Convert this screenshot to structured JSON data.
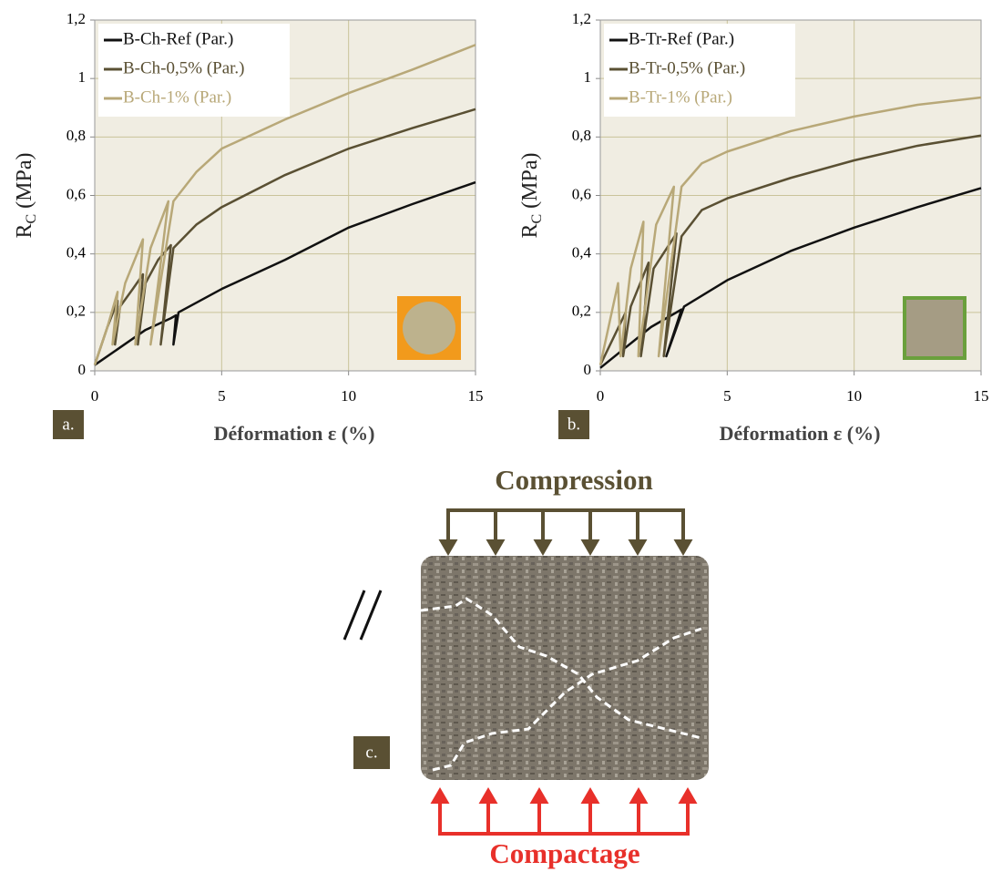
{
  "chart_data": [
    {
      "type": "line",
      "panel_label": "a.",
      "xlabel": "Déformation ε (%)",
      "ylabel": {
        "main": "R",
        "sub": "C",
        "rest": " (MPa)"
      },
      "xlim": [
        0,
        15
      ],
      "xticks": [
        0,
        5,
        10,
        15
      ],
      "ylim": [
        0,
        1.2
      ],
      "yticks": [
        0,
        {
          "value": 0.2,
          "label": "0,2"
        },
        {
          "value": 0.4,
          "label": "0,4"
        },
        {
          "value": 0.6,
          "label": "0,6"
        },
        {
          "value": 0.8,
          "label": "0,8"
        },
        1,
        {
          "value": 1.2,
          "label": "1,2"
        }
      ],
      "grid": true,
      "legend": "upper left",
      "series": [
        {
          "name": "B-Ch-Ref (Par.)",
          "color": "#111111",
          "x": [
            0,
            1,
            2,
            3,
            3.2,
            3.1,
            3.3,
            5,
            7.5,
            10,
            12.5,
            15
          ],
          "values": [
            0.02,
            0.08,
            0.14,
            0.18,
            0.19,
            0.09,
            0.2,
            0.28,
            0.38,
            0.49,
            0.57,
            0.645
          ]
        },
        {
          "name": "B-Ch-0,5% (Par.)",
          "color": "#5a5033",
          "x": [
            0,
            0.5,
            0.9,
            0.8,
            1,
            1.5,
            1.9,
            1.7,
            2,
            2.5,
            3,
            2.6,
            3.1,
            4,
            5,
            7.5,
            10,
            12.5,
            15
          ],
          "values": [
            0.02,
            0.15,
            0.24,
            0.09,
            0.22,
            0.28,
            0.33,
            0.09,
            0.3,
            0.38,
            0.43,
            0.09,
            0.42,
            0.5,
            0.56,
            0.67,
            0.76,
            0.83,
            0.895
          ]
        },
        {
          "name": "B-Ch-1% (Par.)",
          "color": "#b8a878",
          "x": [
            0,
            0.5,
            0.9,
            0.7,
            1.2,
            1.9,
            1.6,
            2.2,
            2.9,
            2.2,
            3.1,
            4,
            5,
            7.5,
            10,
            12.5,
            15
          ],
          "values": [
            0.02,
            0.15,
            0.27,
            0.09,
            0.3,
            0.45,
            0.09,
            0.42,
            0.58,
            0.09,
            0.58,
            0.68,
            0.76,
            0.86,
            0.95,
            1.03,
            1.115
          ]
        }
      ]
    },
    {
      "type": "line",
      "panel_label": "b.",
      "xlabel": "Déformation ε (%)",
      "ylabel": {
        "main": "R",
        "sub": "C",
        "rest": " (MPa)"
      },
      "xlim": [
        0,
        15
      ],
      "xticks": [
        0,
        5,
        10,
        15
      ],
      "ylim": [
        0,
        1.2
      ],
      "yticks": [
        0,
        {
          "value": 0.2,
          "label": "0,2"
        },
        {
          "value": 0.4,
          "label": "0,4"
        },
        {
          "value": 0.6,
          "label": "0,6"
        },
        {
          "value": 0.8,
          "label": "0,8"
        },
        1,
        {
          "value": 1.2,
          "label": "1,2"
        }
      ],
      "grid": true,
      "legend": "upper left",
      "series": [
        {
          "name": "B-Tr-Ref (Par.)",
          "color": "#111111",
          "x": [
            0,
            1,
            2,
            3.2,
            2.6,
            3.3,
            5,
            7.5,
            10,
            12.5,
            15
          ],
          "values": [
            0.01,
            0.08,
            0.15,
            0.21,
            0.05,
            0.22,
            0.31,
            0.41,
            0.49,
            0.56,
            0.625
          ]
        },
        {
          "name": "B-Tr-0,5% (Par.)",
          "color": "#5a5033",
          "x": [
            0,
            1,
            0.9,
            1.2,
            1.9,
            1.6,
            2.1,
            3,
            2.5,
            3.2,
            4,
            5,
            7.5,
            10,
            12.5,
            15
          ],
          "values": [
            0.02,
            0.2,
            0.05,
            0.22,
            0.37,
            0.05,
            0.35,
            0.47,
            0.05,
            0.46,
            0.55,
            0.59,
            0.66,
            0.72,
            0.77,
            0.805
          ]
        },
        {
          "name": "B-Tr-1% (Par.)",
          "color": "#b8a878",
          "x": [
            0,
            0.7,
            0.8,
            1.2,
            1.7,
            1.5,
            2.2,
            2.9,
            2.3,
            3.2,
            4,
            5,
            7.5,
            10,
            12.5,
            15
          ],
          "values": [
            0.02,
            0.3,
            0.05,
            0.35,
            0.51,
            0.05,
            0.5,
            0.63,
            0.05,
            0.63,
            0.71,
            0.75,
            0.82,
            0.87,
            0.91,
            0.935
          ]
        }
      ]
    }
  ],
  "diagram": {
    "top_label": "Compression",
    "bottom_label": "Compactage",
    "panel_label": "c."
  }
}
